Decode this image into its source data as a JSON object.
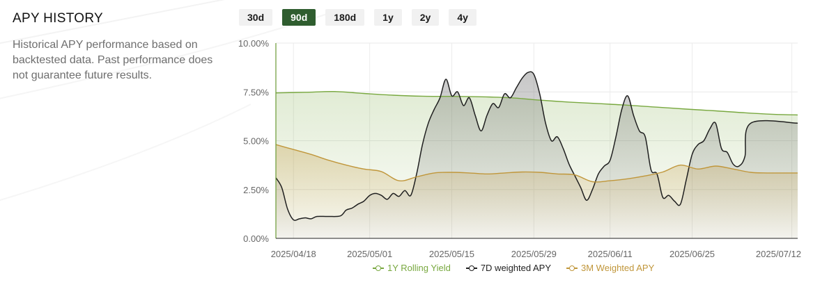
{
  "section": {
    "title": "APY HISTORY",
    "description": "Historical APY performance based on backtested data. Past performance does not guarantee future results."
  },
  "ranges": [
    {
      "label": "30d",
      "active": false
    },
    {
      "label": "90d",
      "active": true
    },
    {
      "label": "180d",
      "active": false
    },
    {
      "label": "1y",
      "active": false
    },
    {
      "label": "2y",
      "active": false
    },
    {
      "label": "4y",
      "active": false
    }
  ],
  "colors": {
    "rolling": "#78a83f",
    "weighted7d": "#1f1f1f",
    "weighted3m": "#c0963a",
    "active_tab": "#2f5d2f"
  },
  "chart_data": {
    "type": "area",
    "x_range": [
      "2025-04-15",
      "2025-07-13"
    ],
    "x_ticks": [
      "2025/04/18",
      "2025/05/01",
      "2025/05/15",
      "2025/05/29",
      "2025/06/11",
      "2025/06/25",
      "2025/07/12"
    ],
    "y_ticks": [
      "0.00%",
      "2.50%",
      "5.00%",
      "7.50%",
      "10.00%"
    ],
    "ylim": [
      0,
      10
    ],
    "grid": true,
    "legend_position": "bottom",
    "series": [
      {
        "name": "1Y Rolling Yield",
        "color": "#78a83f",
        "points": [
          [
            "2025-04-15",
            7.45
          ],
          [
            "2025-04-20",
            7.48
          ],
          [
            "2025-04-25",
            7.52
          ],
          [
            "2025-04-30",
            7.42
          ],
          [
            "2025-05-05",
            7.33
          ],
          [
            "2025-05-10",
            7.28
          ],
          [
            "2025-05-15",
            7.27
          ],
          [
            "2025-05-20",
            7.25
          ],
          [
            "2025-05-25",
            7.2
          ],
          [
            "2025-05-30",
            7.08
          ],
          [
            "2025-06-04",
            6.98
          ],
          [
            "2025-06-09",
            6.9
          ],
          [
            "2025-06-14",
            6.82
          ],
          [
            "2025-06-19",
            6.72
          ],
          [
            "2025-06-24",
            6.62
          ],
          [
            "2025-06-29",
            6.53
          ],
          [
            "2025-07-04",
            6.43
          ],
          [
            "2025-07-09",
            6.35
          ],
          [
            "2025-07-13",
            6.32
          ]
        ]
      },
      {
        "name": "7D weighted APY",
        "color": "#1f1f1f",
        "points": [
          [
            "2025-04-15",
            3.1
          ],
          [
            "2025-04-16",
            2.6
          ],
          [
            "2025-04-17",
            1.5
          ],
          [
            "2025-04-18",
            0.95
          ],
          [
            "2025-04-19",
            1.0
          ],
          [
            "2025-04-20",
            1.05
          ],
          [
            "2025-04-21",
            1.0
          ],
          [
            "2025-04-22",
            1.12
          ],
          [
            "2025-04-24",
            1.12
          ],
          [
            "2025-04-26",
            1.15
          ],
          [
            "2025-04-27",
            1.45
          ],
          [
            "2025-04-28",
            1.55
          ],
          [
            "2025-04-29",
            1.75
          ],
          [
            "2025-04-30",
            1.9
          ],
          [
            "2025-05-01",
            2.2
          ],
          [
            "2025-05-02",
            2.3
          ],
          [
            "2025-05-03",
            2.2
          ],
          [
            "2025-05-04",
            2.0
          ],
          [
            "2025-05-05",
            2.3
          ],
          [
            "2025-05-06",
            2.15
          ],
          [
            "2025-05-07",
            2.45
          ],
          [
            "2025-05-08",
            2.2
          ],
          [
            "2025-05-09",
            3.3
          ],
          [
            "2025-05-10",
            4.8
          ],
          [
            "2025-05-11",
            5.9
          ],
          [
            "2025-05-12",
            6.6
          ],
          [
            "2025-05-13",
            7.2
          ],
          [
            "2025-05-14",
            8.15
          ],
          [
            "2025-05-15",
            7.3
          ],
          [
            "2025-05-16",
            7.5
          ],
          [
            "2025-05-17",
            6.8
          ],
          [
            "2025-05-18",
            7.2
          ],
          [
            "2025-05-19",
            6.3
          ],
          [
            "2025-05-20",
            5.5
          ],
          [
            "2025-05-21",
            6.3
          ],
          [
            "2025-05-22",
            6.9
          ],
          [
            "2025-05-23",
            6.7
          ],
          [
            "2025-05-24",
            7.4
          ],
          [
            "2025-05-25",
            7.2
          ],
          [
            "2025-05-26",
            7.7
          ],
          [
            "2025-05-27",
            8.2
          ],
          [
            "2025-05-28",
            8.5
          ],
          [
            "2025-05-29",
            8.4
          ],
          [
            "2025-05-30",
            7.4
          ],
          [
            "2025-05-31",
            5.9
          ],
          [
            "2025-06-01",
            5.0
          ],
          [
            "2025-06-02",
            5.2
          ],
          [
            "2025-06-03",
            4.6
          ],
          [
            "2025-06-04",
            3.8
          ],
          [
            "2025-06-05",
            3.2
          ],
          [
            "2025-06-06",
            2.6
          ],
          [
            "2025-06-07",
            1.95
          ],
          [
            "2025-06-08",
            2.5
          ],
          [
            "2025-06-09",
            3.3
          ],
          [
            "2025-06-10",
            3.7
          ],
          [
            "2025-06-11",
            4.0
          ],
          [
            "2025-06-12",
            5.2
          ],
          [
            "2025-06-13",
            6.6
          ],
          [
            "2025-06-14",
            7.3
          ],
          [
            "2025-06-15",
            6.3
          ],
          [
            "2025-06-16",
            5.5
          ],
          [
            "2025-06-17",
            5.2
          ],
          [
            "2025-06-18",
            3.5
          ],
          [
            "2025-06-19",
            3.3
          ],
          [
            "2025-06-20",
            2.1
          ],
          [
            "2025-06-21",
            2.2
          ],
          [
            "2025-06-22",
            1.9
          ],
          [
            "2025-06-23",
            1.75
          ],
          [
            "2025-06-24",
            3.0
          ],
          [
            "2025-06-25",
            4.3
          ],
          [
            "2025-06-26",
            4.8
          ],
          [
            "2025-06-27",
            5.0
          ],
          [
            "2025-06-28",
            5.6
          ],
          [
            "2025-06-29",
            5.9
          ],
          [
            "2025-06-30",
            4.6
          ],
          [
            "2025-07-01",
            4.4
          ],
          [
            "2025-07-02",
            3.8
          ],
          [
            "2025-07-03",
            3.7
          ],
          [
            "2025-07-04",
            4.2
          ],
          [
            "2025-07-05",
            5.9
          ],
          [
            "2025-07-13",
            5.9
          ]
        ]
      },
      {
        "name": "3M Weighted APY",
        "color": "#c0963a",
        "points": [
          [
            "2025-04-15",
            4.8
          ],
          [
            "2025-04-18",
            4.55
          ],
          [
            "2025-04-21",
            4.3
          ],
          [
            "2025-04-24",
            4.0
          ],
          [
            "2025-04-27",
            3.75
          ],
          [
            "2025-04-30",
            3.55
          ],
          [
            "2025-05-03",
            3.42
          ],
          [
            "2025-05-06",
            2.95
          ],
          [
            "2025-05-09",
            3.15
          ],
          [
            "2025-05-12",
            3.35
          ],
          [
            "2025-05-15",
            3.38
          ],
          [
            "2025-05-18",
            3.35
          ],
          [
            "2025-05-21",
            3.3
          ],
          [
            "2025-05-24",
            3.35
          ],
          [
            "2025-05-27",
            3.4
          ],
          [
            "2025-05-30",
            3.38
          ],
          [
            "2025-06-02",
            3.3
          ],
          [
            "2025-06-05",
            3.25
          ],
          [
            "2025-06-08",
            2.9
          ],
          [
            "2025-06-11",
            2.95
          ],
          [
            "2025-06-14",
            3.05
          ],
          [
            "2025-06-17",
            3.2
          ],
          [
            "2025-06-20",
            3.4
          ],
          [
            "2025-06-23",
            3.75
          ],
          [
            "2025-06-26",
            3.55
          ],
          [
            "2025-06-29",
            3.7
          ],
          [
            "2025-07-02",
            3.55
          ],
          [
            "2025-07-05",
            3.38
          ],
          [
            "2025-07-08",
            3.35
          ],
          [
            "2025-07-13",
            3.35
          ]
        ]
      }
    ]
  }
}
